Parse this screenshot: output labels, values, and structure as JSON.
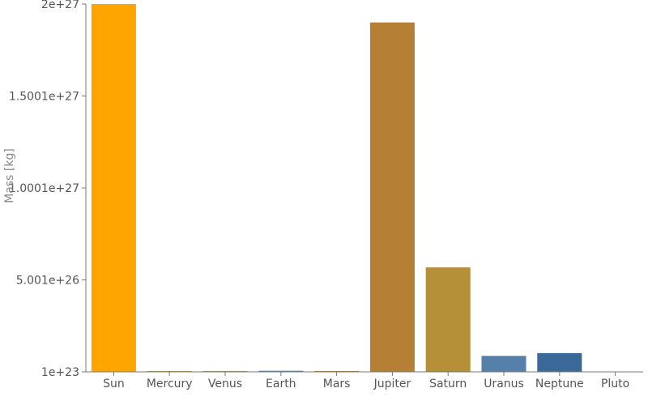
{
  "chart_data": {
    "type": "bar",
    "title": "",
    "xlabel": "",
    "ylabel": "Mass [kg]",
    "categories": [
      "Sun",
      "Mercury",
      "Venus",
      "Earth",
      "Mars",
      "Jupiter",
      "Saturn",
      "Uranus",
      "Neptune",
      "Pluto"
    ],
    "values": [
      2e+27,
      3.3e+23,
      4.87e+24,
      5.97e+24,
      6.42e+23,
      1.9e+27,
      5.68e+26,
      8.68e+25,
      1.02e+26,
      1.3e+22
    ],
    "colors": [
      "#ffa500",
      "#b0a050",
      "#a0a060",
      "#5a82a8",
      "#b07838",
      "#b58035",
      "#b59038",
      "#5580aa",
      "#3a6898",
      "#6a88b0"
    ],
    "ylim": [
      1e+23,
      2e+27
    ],
    "y_ticks": [
      {
        "value": 1e+23,
        "label": "1e+23"
      },
      {
        "value": 5.001e+26,
        "label": "5.001e+26"
      },
      {
        "value": 1.0001e+27,
        "label": "1.0001e+27"
      },
      {
        "value": 1.5001e+27,
        "label": "1.5001e+27"
      },
      {
        "value": 2e+27,
        "label": "2e+27"
      }
    ],
    "grid": false,
    "legend": "none"
  }
}
